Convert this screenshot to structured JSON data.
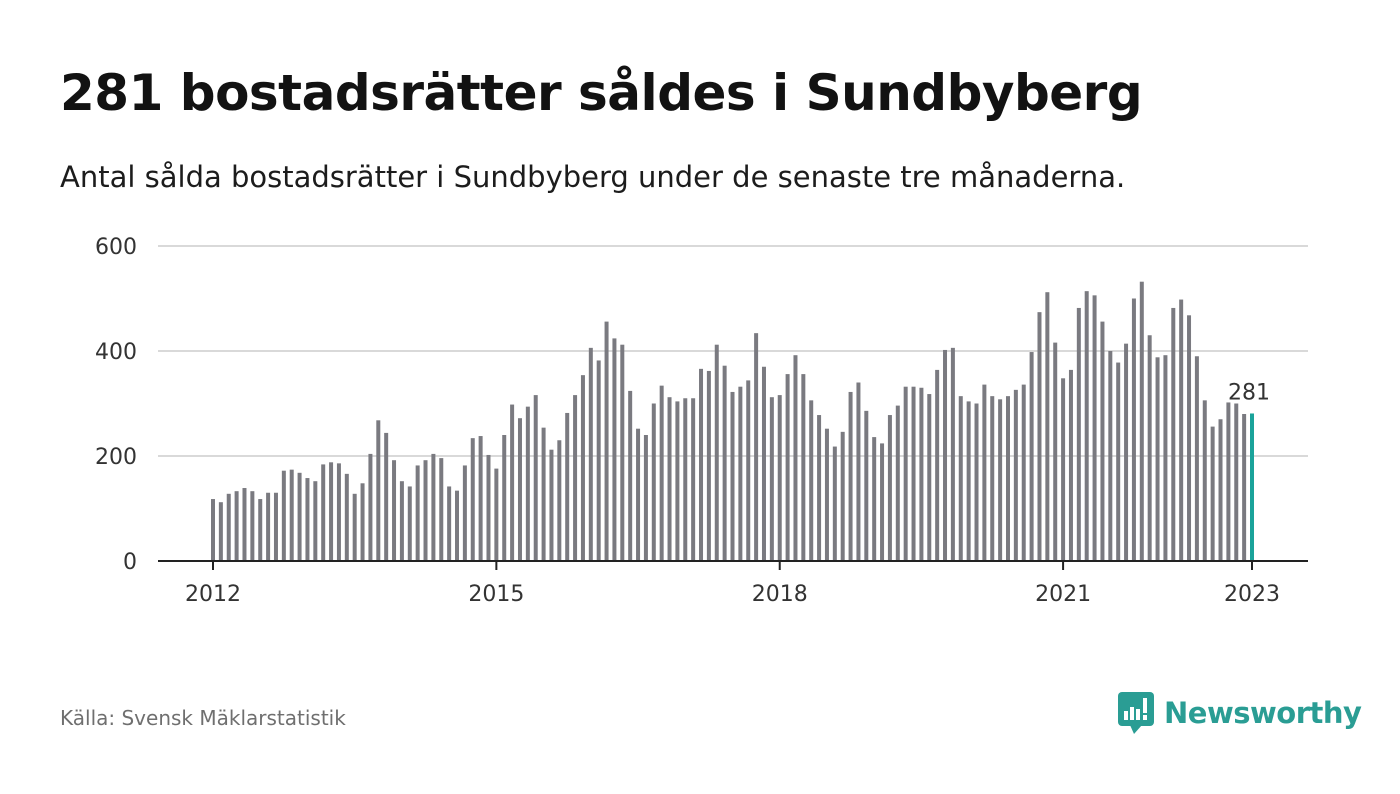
{
  "title": "281 bostadsrätter såldes i Sundbyberg",
  "subtitle": "Antal sålda bostadsrätter i Sundbyberg under de senaste tre månaderna.",
  "source": "Källa: Svensk Mäklarstatistik",
  "brand": {
    "name": "Newsworthy",
    "color": "#2a9d94",
    "icon": "newsworthy-logo-icon"
  },
  "colors": {
    "bar": "#7a7a80",
    "highlight": "#1aa39a",
    "grid": "#d9d9d9",
    "axis": "#222222"
  },
  "chart_data": {
    "type": "bar",
    "title": "281 bostadsrätter såldes i Sundbyberg",
    "xlabel": "",
    "ylabel": "",
    "x_start": "2012-01",
    "ylim": [
      0,
      600
    ],
    "yticks": [
      0,
      200,
      400,
      600
    ],
    "xticks": [
      "2012",
      "2015",
      "2018",
      "2021",
      "2023"
    ],
    "grid": true,
    "highlight_label": "281",
    "values": [
      118,
      112,
      128,
      133,
      139,
      133,
      118,
      130,
      130,
      172,
      174,
      168,
      158,
      152,
      184,
      188,
      186,
      166,
      128,
      148,
      204,
      268,
      244,
      192,
      152,
      142,
      182,
      192,
      204,
      196,
      142,
      134,
      182,
      234,
      238,
      202,
      176,
      240,
      298,
      272,
      294,
      316,
      254,
      212,
      230,
      282,
      316,
      354,
      406,
      382,
      456,
      424,
      412,
      324,
      252,
      240,
      300,
      334,
      312,
      304,
      310,
      310,
      366,
      362,
      412,
      372,
      322,
      332,
      344,
      434,
      370,
      312,
      316,
      356,
      392,
      356,
      306,
      278,
      252,
      218,
      246,
      322,
      340,
      286,
      236,
      224,
      278,
      296,
      332,
      332,
      330,
      318,
      364,
      402,
      406,
      314,
      304,
      300,
      336,
      314,
      308,
      314,
      326,
      336,
      398,
      474,
      512,
      416,
      348,
      364,
      482,
      514,
      506,
      456,
      400,
      378,
      414,
      500,
      532,
      430,
      388,
      392,
      482,
      498,
      468,
      390,
      306,
      256,
      270,
      302,
      300,
      280,
      281
    ]
  }
}
